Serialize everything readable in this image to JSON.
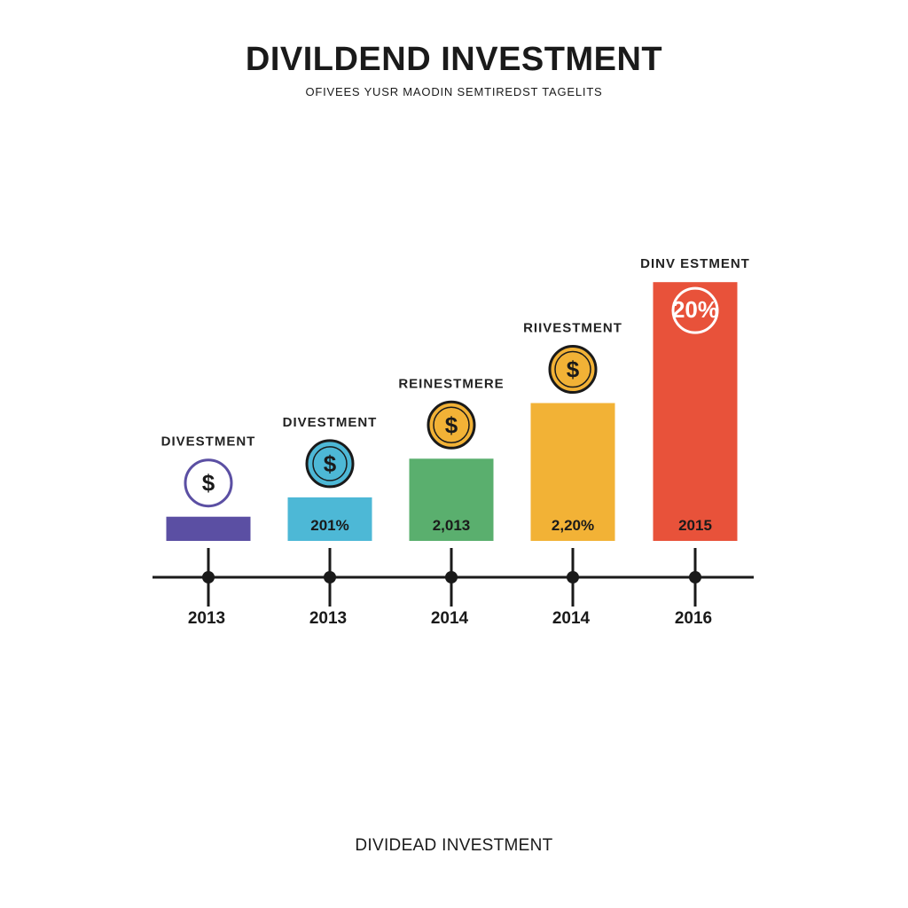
{
  "title": "DIVILDEND INVESTMENT",
  "subtitle": "OFIVEES YUSR MAODIN SEMTIREDST TAGELITS",
  "footer": "DIVIDEAD INVESTMENT",
  "colors": {
    "background": "#ffffff",
    "axis": "#1a1a1a",
    "bars": [
      "#5b4fa3",
      "#4db8d6",
      "#5aaf6e",
      "#f2b236",
      "#e8523a"
    ]
  },
  "chart_data": {
    "type": "bar",
    "grid": false,
    "categories": [
      "2013",
      "2013",
      "2014",
      "2014",
      "2016"
    ],
    "values": [
      1,
      1.8,
      3.4,
      5.7,
      10.7
    ],
    "ylim": [
      0,
      11
    ],
    "bar_labels": [
      "DIVESTMENT",
      "DIVESTMENT",
      "REINESTMERE",
      "RIIVESTMENT",
      "DINV ESTMENT"
    ],
    "data_labels": [
      "",
      "201%",
      "2,013",
      "2,20%",
      "2015"
    ],
    "icons": [
      "dollar-coin-icon",
      "dollar-coin-icon",
      "dollar-coin-icon",
      "dollar-coin-icon",
      "percent-badge-icon"
    ],
    "icon_glyphs": [
      "$",
      "$",
      "$",
      "$",
      "20%"
    ]
  }
}
